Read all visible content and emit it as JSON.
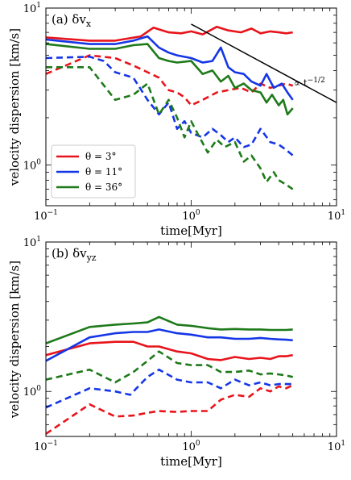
{
  "colors": {
    "red": "#e8141b",
    "blue": "#1536e6",
    "green": "#1e7a1a",
    "ref_line": "#000000"
  },
  "legend": [
    {
      "label": "θ = 3°",
      "color": "#e8141b"
    },
    {
      "label": "θ = 11°",
      "color": "#1536e6"
    },
    {
      "label": "θ = 36°",
      "color": "#1e7a1a"
    }
  ],
  "chart_data": [
    {
      "type": "line",
      "panel_tag": "(a) δv",
      "panel_sub": "x",
      "xlabel": "time[Myr]",
      "ylabel": "velocity dispersion [km/s]",
      "xscale": "log",
      "yscale": "log",
      "xlim": [
        0.1,
        10
      ],
      "ylim": [
        0.55,
        10
      ],
      "xtick_labels": [
        "10−1",
        "100",
        "101"
      ],
      "ytick_labels": [
        "100",
        "101"
      ],
      "annotation": "∝ t−1/2",
      "ref_line": {
        "x": [
          1.0,
          10.0
        ],
        "y": [
          7.9,
          2.5
        ]
      },
      "series": [
        {
          "color": "red",
          "style": "solid",
          "x": [
            0.1,
            0.2,
            0.3,
            0.45,
            0.55,
            0.7,
            0.85,
            1.0,
            1.2,
            1.5,
            1.8,
            2.2,
            2.6,
            3.0,
            3.5,
            4.0,
            4.5,
            5.0
          ],
          "y": [
            6.5,
            6.2,
            6.2,
            6.6,
            7.5,
            7.0,
            6.9,
            7.1,
            6.8,
            7.6,
            7.2,
            7.0,
            7.4,
            6.9,
            7.1,
            7.0,
            6.9,
            7.0
          ]
        },
        {
          "color": "red",
          "style": "dashed",
          "x": [
            0.1,
            0.2,
            0.3,
            0.4,
            0.5,
            0.6,
            0.7,
            0.8,
            0.9,
            1.0,
            1.2,
            1.5,
            1.8,
            2.2,
            2.6,
            3.0,
            3.5,
            4.0,
            4.5,
            5.0
          ],
          "y": [
            3.8,
            5.0,
            4.8,
            4.3,
            3.9,
            3.6,
            3.0,
            2.9,
            2.7,
            2.4,
            2.6,
            2.9,
            3.0,
            3.1,
            2.9,
            3.3,
            3.1,
            3.2,
            3.3,
            3.2
          ]
        },
        {
          "color": "blue",
          "style": "solid",
          "x": [
            0.1,
            0.2,
            0.3,
            0.4,
            0.5,
            0.6,
            0.7,
            0.8,
            1.0,
            1.2,
            1.4,
            1.6,
            1.8,
            2.0,
            2.3,
            2.6,
            3.0,
            3.3,
            3.7,
            4.2,
            4.6,
            5.0
          ],
          "y": [
            6.3,
            5.9,
            5.9,
            6.2,
            6.6,
            5.6,
            5.2,
            5.0,
            4.8,
            4.5,
            4.6,
            5.6,
            4.2,
            3.9,
            3.8,
            3.4,
            3.2,
            3.8,
            3.1,
            3.3,
            2.9,
            2.6
          ]
        },
        {
          "color": "blue",
          "style": "dashed",
          "x": [
            0.1,
            0.2,
            0.25,
            0.3,
            0.4,
            0.5,
            0.6,
            0.7,
            0.8,
            0.9,
            1.0,
            1.2,
            1.4,
            1.6,
            1.8,
            2.0,
            2.3,
            2.6,
            3.0,
            3.5,
            4.0,
            4.5,
            5.0
          ],
          "y": [
            4.8,
            4.9,
            4.6,
            3.9,
            3.6,
            2.6,
            2.1,
            2.5,
            1.7,
            1.9,
            1.6,
            1.5,
            1.7,
            1.55,
            1.4,
            1.5,
            1.3,
            1.35,
            1.7,
            1.4,
            1.35,
            1.25,
            1.15
          ]
        },
        {
          "color": "green",
          "style": "solid",
          "x": [
            0.1,
            0.2,
            0.3,
            0.4,
            0.5,
            0.6,
            0.7,
            0.8,
            1.0,
            1.2,
            1.4,
            1.6,
            1.8,
            2.0,
            2.3,
            2.6,
            3.0,
            3.3,
            3.6,
            4.0,
            4.3,
            4.6,
            5.0
          ],
          "y": [
            5.9,
            5.5,
            5.5,
            5.8,
            5.9,
            4.8,
            4.6,
            4.5,
            4.6,
            3.8,
            4.0,
            3.4,
            3.7,
            3.1,
            3.3,
            3.0,
            2.9,
            2.5,
            2.8,
            2.4,
            2.6,
            2.1,
            2.3
          ]
        },
        {
          "color": "green",
          "style": "dashed",
          "x": [
            0.1,
            0.2,
            0.3,
            0.4,
            0.5,
            0.6,
            0.7,
            0.8,
            0.9,
            1.0,
            1.1,
            1.3,
            1.5,
            1.7,
            2.0,
            2.3,
            2.6,
            3.0,
            3.3,
            3.7,
            4.0,
            4.5,
            5.0
          ],
          "y": [
            4.2,
            4.2,
            2.6,
            2.8,
            3.3,
            2.1,
            2.6,
            2.0,
            1.5,
            1.9,
            1.6,
            1.2,
            1.45,
            1.3,
            1.4,
            1.05,
            1.15,
            0.95,
            0.78,
            0.9,
            0.8,
            0.75,
            0.7
          ]
        }
      ]
    },
    {
      "type": "line",
      "panel_tag": "(b) δv",
      "panel_sub": "yz",
      "xlabel": "time[Myr]",
      "ylabel": "velocity dispersion [km/s]",
      "xscale": "log",
      "yscale": "log",
      "xlim": [
        0.1,
        10
      ],
      "ylim": [
        0.5,
        10
      ],
      "xtick_labels": [
        "10−1",
        "100",
        "101"
      ],
      "ytick_labels": [
        "100",
        "101"
      ],
      "series": [
        {
          "color": "red",
          "style": "solid",
          "x": [
            0.1,
            0.2,
            0.3,
            0.4,
            0.5,
            0.6,
            0.8,
            1.0,
            1.3,
            1.6,
            2.0,
            2.5,
            3.0,
            3.5,
            4.0,
            4.5,
            5.0
          ],
          "y": [
            1.75,
            2.1,
            2.15,
            2.15,
            2.0,
            2.0,
            1.85,
            1.8,
            1.65,
            1.62,
            1.7,
            1.65,
            1.68,
            1.65,
            1.72,
            1.72,
            1.75
          ]
        },
        {
          "color": "red",
          "style": "dashed",
          "x": [
            0.1,
            0.2,
            0.3,
            0.4,
            0.5,
            0.6,
            0.8,
            1.0,
            1.3,
            1.6,
            2.0,
            2.5,
            3.0,
            3.5,
            4.0,
            4.5,
            5.0
          ],
          "y": [
            0.52,
            0.82,
            0.68,
            0.69,
            0.72,
            0.74,
            0.73,
            0.74,
            0.74,
            0.88,
            0.95,
            0.92,
            1.05,
            1.0,
            1.08,
            1.05,
            1.1
          ]
        },
        {
          "color": "blue",
          "style": "solid",
          "x": [
            0.1,
            0.2,
            0.3,
            0.4,
            0.5,
            0.6,
            0.8,
            1.0,
            1.3,
            1.6,
            2.0,
            2.5,
            3.0,
            3.5,
            4.0,
            4.5,
            5.0
          ],
          "y": [
            1.6,
            2.3,
            2.45,
            2.5,
            2.5,
            2.6,
            2.45,
            2.4,
            2.3,
            2.3,
            2.25,
            2.25,
            2.28,
            2.25,
            2.23,
            2.22,
            2.2
          ]
        },
        {
          "color": "blue",
          "style": "dashed",
          "x": [
            0.1,
            0.2,
            0.3,
            0.38,
            0.5,
            0.6,
            0.8,
            1.0,
            1.3,
            1.6,
            2.0,
            2.5,
            3.0,
            3.5,
            4.0,
            4.5,
            5.0
          ],
          "y": [
            0.78,
            1.05,
            1.0,
            0.95,
            1.25,
            1.4,
            1.2,
            1.15,
            1.15,
            1.05,
            1.2,
            1.1,
            1.15,
            1.1,
            1.12,
            1.12,
            1.12
          ]
        },
        {
          "color": "green",
          "style": "solid",
          "x": [
            0.1,
            0.2,
            0.3,
            0.4,
            0.5,
            0.6,
            0.8,
            1.0,
            1.3,
            1.6,
            2.0,
            2.5,
            3.0,
            3.5,
            4.0,
            4.5,
            5.0
          ],
          "y": [
            2.1,
            2.7,
            2.8,
            2.85,
            2.9,
            3.15,
            2.8,
            2.75,
            2.65,
            2.6,
            2.62,
            2.6,
            2.6,
            2.58,
            2.58,
            2.58,
            2.6
          ]
        },
        {
          "color": "green",
          "style": "dashed",
          "x": [
            0.1,
            0.2,
            0.3,
            0.4,
            0.5,
            0.6,
            0.8,
            1.0,
            1.3,
            1.6,
            2.0,
            2.5,
            3.0,
            3.5,
            4.0,
            4.5,
            5.0
          ],
          "y": [
            1.2,
            1.4,
            1.15,
            1.35,
            1.6,
            1.85,
            1.55,
            1.5,
            1.5,
            1.35,
            1.35,
            1.38,
            1.3,
            1.32,
            1.3,
            1.28,
            1.25
          ]
        }
      ]
    }
  ]
}
